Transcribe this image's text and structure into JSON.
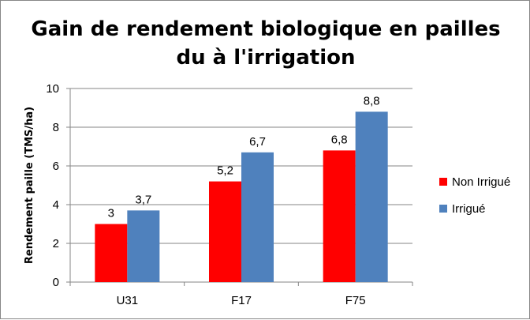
{
  "chart_data": {
    "type": "bar",
    "title_lines": [
      "Gain de rendement biologique en pailles",
      "du à l'irrigation"
    ],
    "xlabel": "",
    "ylabel": "Rendement paille (TMS/ha)",
    "categories": [
      "U31",
      "F17",
      "F75"
    ],
    "series": [
      {
        "name": "Non Irrigué",
        "color": "#ff0000",
        "values": [
          3,
          5.2,
          6.8
        ],
        "labels": [
          "3",
          "5,2",
          "6,8"
        ]
      },
      {
        "name": "Irrigué",
        "color": "#4f81bd",
        "values": [
          3.7,
          6.7,
          8.8
        ],
        "labels": [
          "3,7",
          "6,7",
          "8,8"
        ]
      }
    ],
    "ylim": [
      0,
      10
    ],
    "yticks": [
      0,
      2,
      4,
      6,
      8,
      10
    ],
    "grid": true,
    "legend_position": "right"
  }
}
